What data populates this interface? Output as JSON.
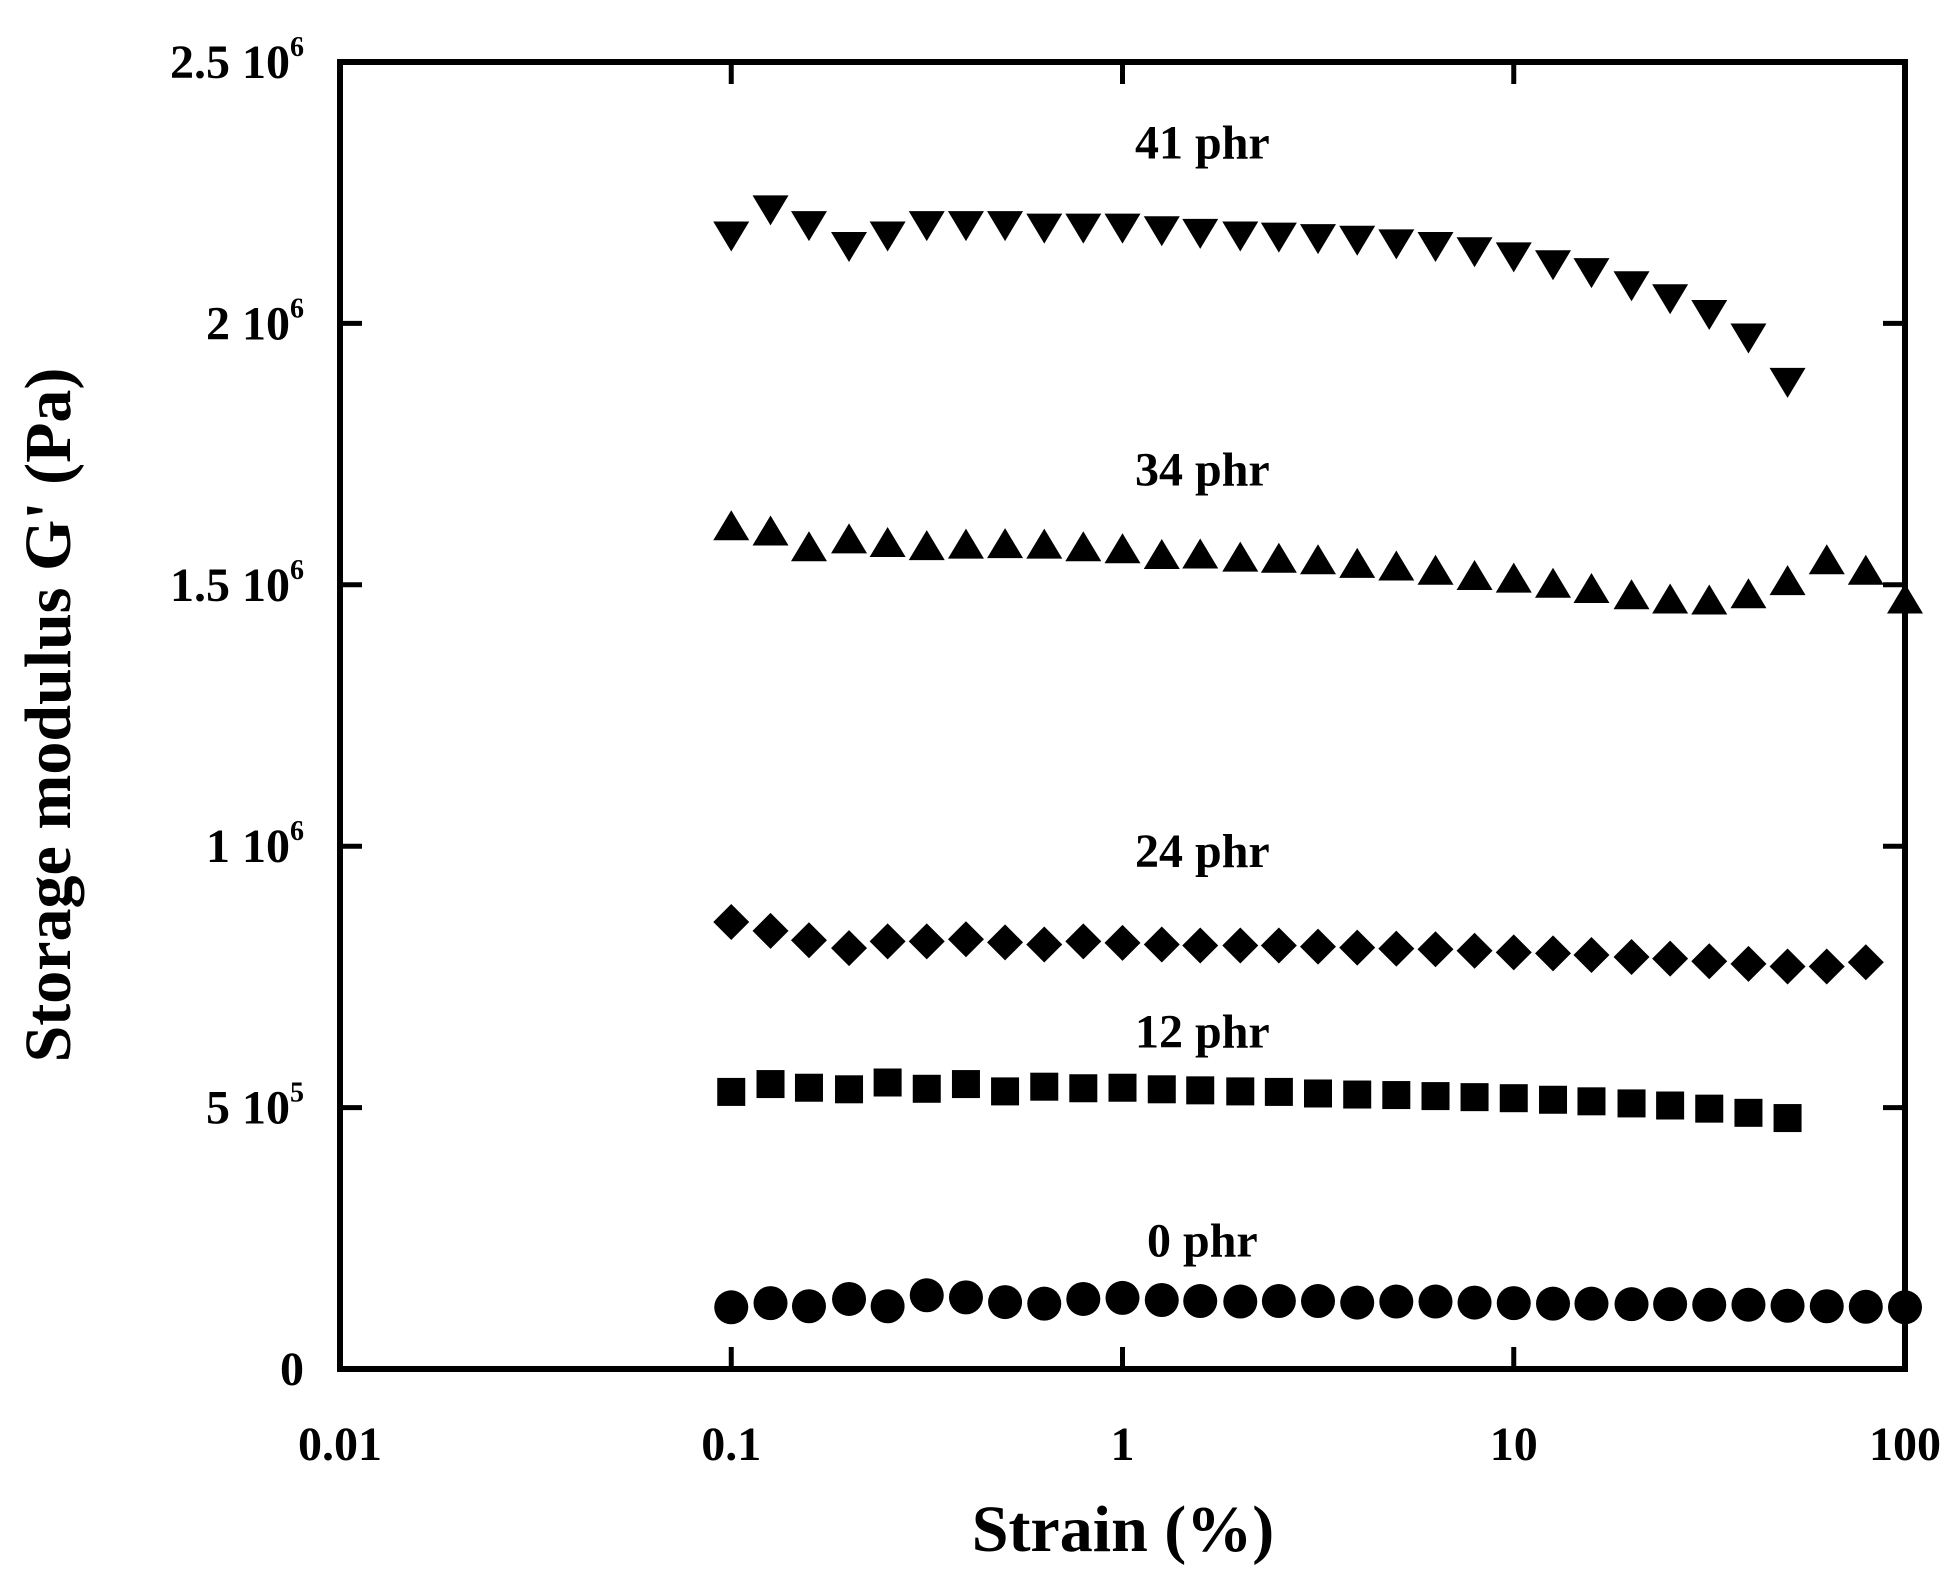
{
  "chart_data": {
    "type": "scatter",
    "title": "",
    "xlabel": "Strain (%)",
    "ylabel": "Storage modulus G' (Pa)",
    "xscale": "log",
    "xlim": [
      0.01,
      100
    ],
    "ylim": [
      0,
      2500000
    ],
    "grid": false,
    "legend": "none",
    "x_ticks": [
      {
        "value": 0.01,
        "label": "0.01"
      },
      {
        "value": 0.1,
        "label": "0.1"
      },
      {
        "value": 1,
        "label": "1"
      },
      {
        "value": 10,
        "label": "10"
      },
      {
        "value": 100,
        "label": "100"
      }
    ],
    "y_ticks": [
      {
        "value": 0,
        "mant": "0",
        "exp": ""
      },
      {
        "value": 500000,
        "mant": "5 10",
        "exp": "5"
      },
      {
        "value": 1000000,
        "mant": "1 10",
        "exp": "6"
      },
      {
        "value": 1500000,
        "mant": "1.5 10",
        "exp": "6"
      },
      {
        "value": 2000000,
        "mant": "2 10",
        "exp": "6"
      },
      {
        "value": 2500000,
        "mant": "2.5 10",
        "exp": "6"
      }
    ],
    "series": [
      {
        "name": "0 phr",
        "label": "0 phr",
        "marker": "circle",
        "label_at": {
          "x": 1.6,
          "y": 215000
        },
        "x": [
          0.1,
          0.126,
          0.158,
          0.2,
          0.251,
          0.316,
          0.398,
          0.501,
          0.631,
          0.794,
          1,
          1.26,
          1.58,
          2,
          2.51,
          3.16,
          3.98,
          5.01,
          6.31,
          7.94,
          10,
          12.6,
          15.8,
          20,
          25.1,
          31.6,
          39.8,
          50.1,
          63.1,
          79.4,
          100
        ],
        "values": [
          118000,
          126000,
          120000,
          134000,
          120000,
          141000,
          137000,
          128000,
          125000,
          134000,
          136000,
          132000,
          130000,
          129000,
          130000,
          130000,
          127000,
          129000,
          129000,
          127000,
          126000,
          125000,
          125000,
          124000,
          124000,
          123000,
          123000,
          121000,
          120000,
          119000,
          118000
        ]
      },
      {
        "name": "12 phr",
        "label": "12 phr",
        "marker": "square",
        "label_at": {
          "x": 1.6,
          "y": 615000
        },
        "x": [
          0.1,
          0.126,
          0.158,
          0.2,
          0.251,
          0.316,
          0.398,
          0.501,
          0.631,
          0.794,
          1,
          1.26,
          1.58,
          2,
          2.51,
          3.16,
          3.98,
          5.01,
          6.31,
          7.94,
          10,
          12.6,
          15.8,
          20,
          25.1,
          31.6,
          39.8,
          50.1
        ],
        "values": [
          530000,
          545000,
          538000,
          535000,
          548000,
          536000,
          545000,
          531000,
          540000,
          537000,
          538000,
          535000,
          533000,
          531000,
          530000,
          527000,
          525000,
          524000,
          522000,
          520000,
          518000,
          515000,
          512000,
          508000,
          504000,
          498000,
          490000,
          480000
        ]
      },
      {
        "name": "24 phr",
        "label": "24 phr",
        "marker": "diamond",
        "label_at": {
          "x": 1.6,
          "y": 960000
        },
        "x": [
          0.1,
          0.126,
          0.158,
          0.2,
          0.251,
          0.316,
          0.398,
          0.501,
          0.631,
          0.794,
          1,
          1.26,
          1.58,
          2,
          2.51,
          3.16,
          3.98,
          5.01,
          6.31,
          7.94,
          10,
          12.6,
          15.8,
          20,
          25.1,
          31.6,
          39.8,
          50.1,
          63.1,
          79.4
        ],
        "values": [
          855000,
          838000,
          820000,
          805000,
          818000,
          818000,
          822000,
          816000,
          812000,
          818000,
          815000,
          812000,
          810000,
          810000,
          810000,
          808000,
          806000,
          804000,
          803000,
          800000,
          797000,
          795000,
          792000,
          788000,
          785000,
          780000,
          775000,
          770000,
          770000,
          778000
        ]
      },
      {
        "name": "34 phr",
        "label": "34 phr",
        "marker": "triangle-up",
        "label_at": {
          "x": 1.6,
          "y": 1690000
        },
        "x": [
          0.1,
          0.126,
          0.158,
          0.2,
          0.251,
          0.316,
          0.398,
          0.501,
          0.631,
          0.794,
          1,
          1.26,
          1.58,
          2,
          2.51,
          3.16,
          3.98,
          5.01,
          6.31,
          7.94,
          10,
          12.6,
          15.8,
          20,
          25.1,
          31.6,
          39.8,
          50.1,
          63.1,
          79.4,
          100
        ],
        "values": [
          1610000,
          1600000,
          1570000,
          1585000,
          1578000,
          1572000,
          1575000,
          1576000,
          1575000,
          1570000,
          1566000,
          1555000,
          1556000,
          1550000,
          1548000,
          1545000,
          1538000,
          1533000,
          1525000,
          1515000,
          1510000,
          1500000,
          1490000,
          1478000,
          1470000,
          1468000,
          1480000,
          1505000,
          1545000,
          1525000,
          1470000
        ]
      },
      {
        "name": "41 phr",
        "label": "41 phr",
        "marker": "triangle-down",
        "label_at": {
          "x": 1.6,
          "y": 2315000
        },
        "x": [
          0.1,
          0.126,
          0.158,
          0.2,
          0.251,
          0.316,
          0.398,
          0.501,
          0.631,
          0.794,
          1,
          1.26,
          1.58,
          2,
          2.51,
          3.16,
          3.98,
          5.01,
          6.31,
          7.94,
          10,
          12.6,
          15.8,
          20,
          25.1,
          31.6,
          39.8,
          50.1
        ],
        "values": [
          2170000,
          2220000,
          2190000,
          2150000,
          2170000,
          2190000,
          2190000,
          2190000,
          2185000,
          2185000,
          2185000,
          2180000,
          2175000,
          2170000,
          2168000,
          2165000,
          2162000,
          2155000,
          2150000,
          2140000,
          2130000,
          2115000,
          2100000,
          2075000,
          2050000,
          2020000,
          1975000,
          1890000
        ]
      }
    ]
  }
}
